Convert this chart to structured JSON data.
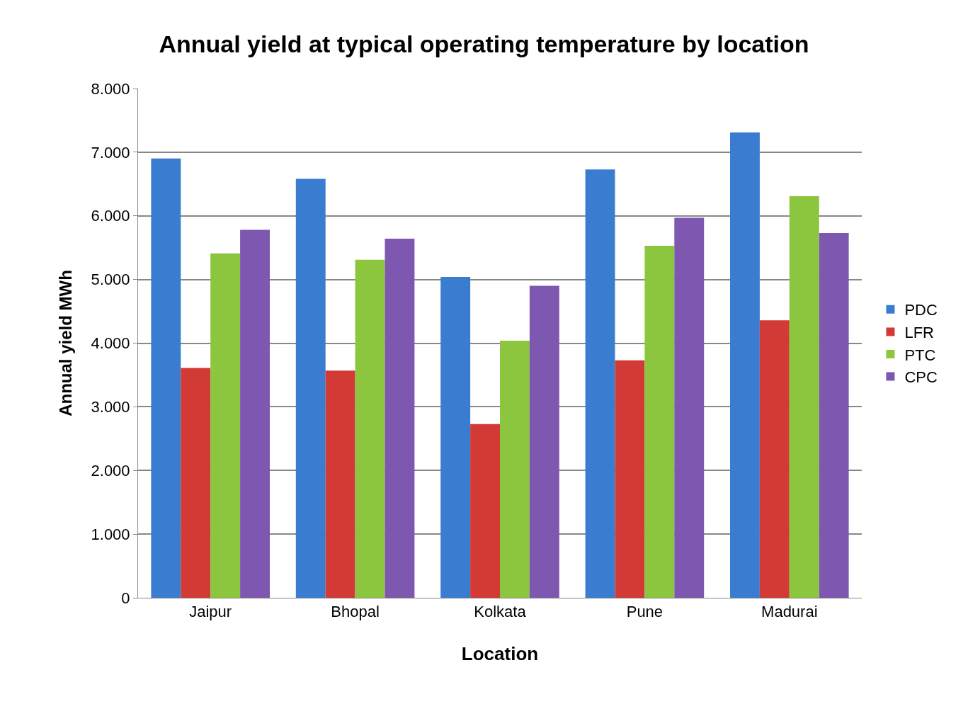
{
  "chart_data": {
    "type": "bar",
    "title": "Annual yield at typical operating temperature by location",
    "xlabel": "Location",
    "ylabel": "Annual yield MWh",
    "categories": [
      "Jaipur",
      "Bhopal",
      "Kolkata",
      "Pune",
      "Madurai"
    ],
    "series": [
      {
        "name": "PDC",
        "color": "#3a7dd0",
        "values": [
          6900,
          6580,
          5040,
          6730,
          7310
        ]
      },
      {
        "name": "LFR",
        "color": "#d23a36",
        "values": [
          3610,
          3570,
          2730,
          3730,
          4360
        ]
      },
      {
        "name": "PTC",
        "color": "#8cc63f",
        "values": [
          5410,
          5310,
          4040,
          5530,
          6310
        ]
      },
      {
        "name": "CPC",
        "color": "#7e57b0",
        "values": [
          5780,
          5640,
          4900,
          5970,
          5730
        ]
      }
    ],
    "ylim": [
      0,
      8000
    ],
    "yticks": [
      0,
      {
        "value": 1000,
        "label": "1.000"
      },
      {
        "value": 2000,
        "label": "2.000"
      },
      {
        "value": 3000,
        "label": "3.000"
      },
      {
        "value": 4000,
        "label": "4.000"
      },
      {
        "value": 5000,
        "label": "5.000"
      },
      {
        "value": 6000,
        "label": "6.000"
      },
      {
        "value": 7000,
        "label": "7.000"
      },
      {
        "value": 8000,
        "label": "8.000"
      }
    ],
    "grid": "y",
    "legend": "right"
  }
}
